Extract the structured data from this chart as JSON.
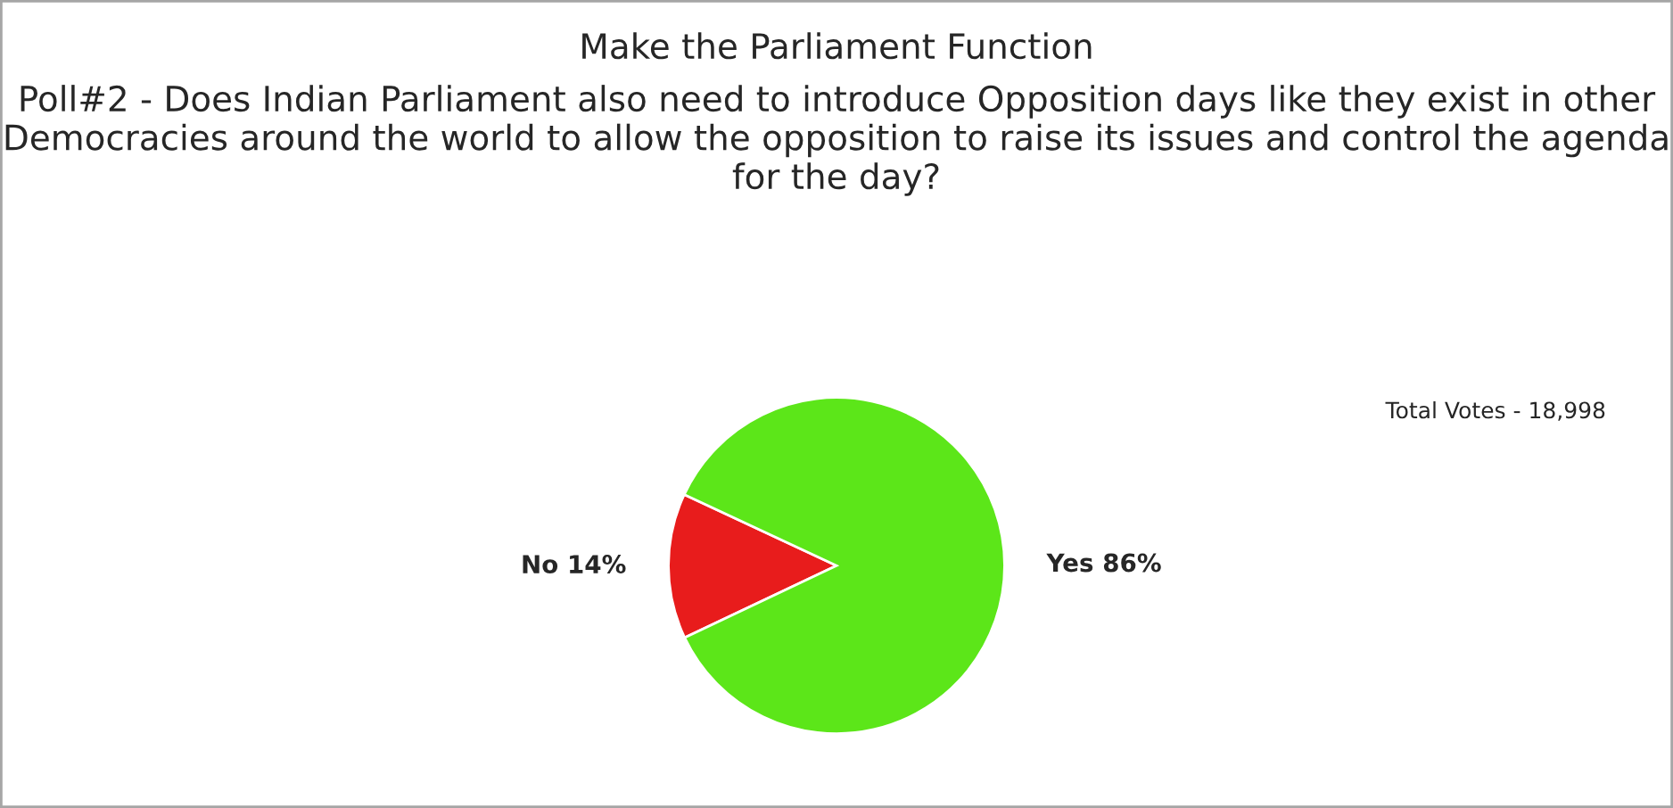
{
  "chart_data": {
    "type": "pie",
    "title": "Make the Parliament Function",
    "subtitle": "Poll#2 - Does Indian Parliament also need to introduce Opposition days like they exist in other Democracies around the world to allow the opposition to raise its issues and control the agenda for the day?",
    "categories": [
      "No",
      "Yes"
    ],
    "values": [
      14,
      86
    ],
    "value_labels": [
      "14%",
      "86%"
    ],
    "colors": [
      "#e81c1c",
      "#5ce619"
    ],
    "annotations": [
      "Total Votes - 18,998"
    ],
    "legend": false
  }
}
